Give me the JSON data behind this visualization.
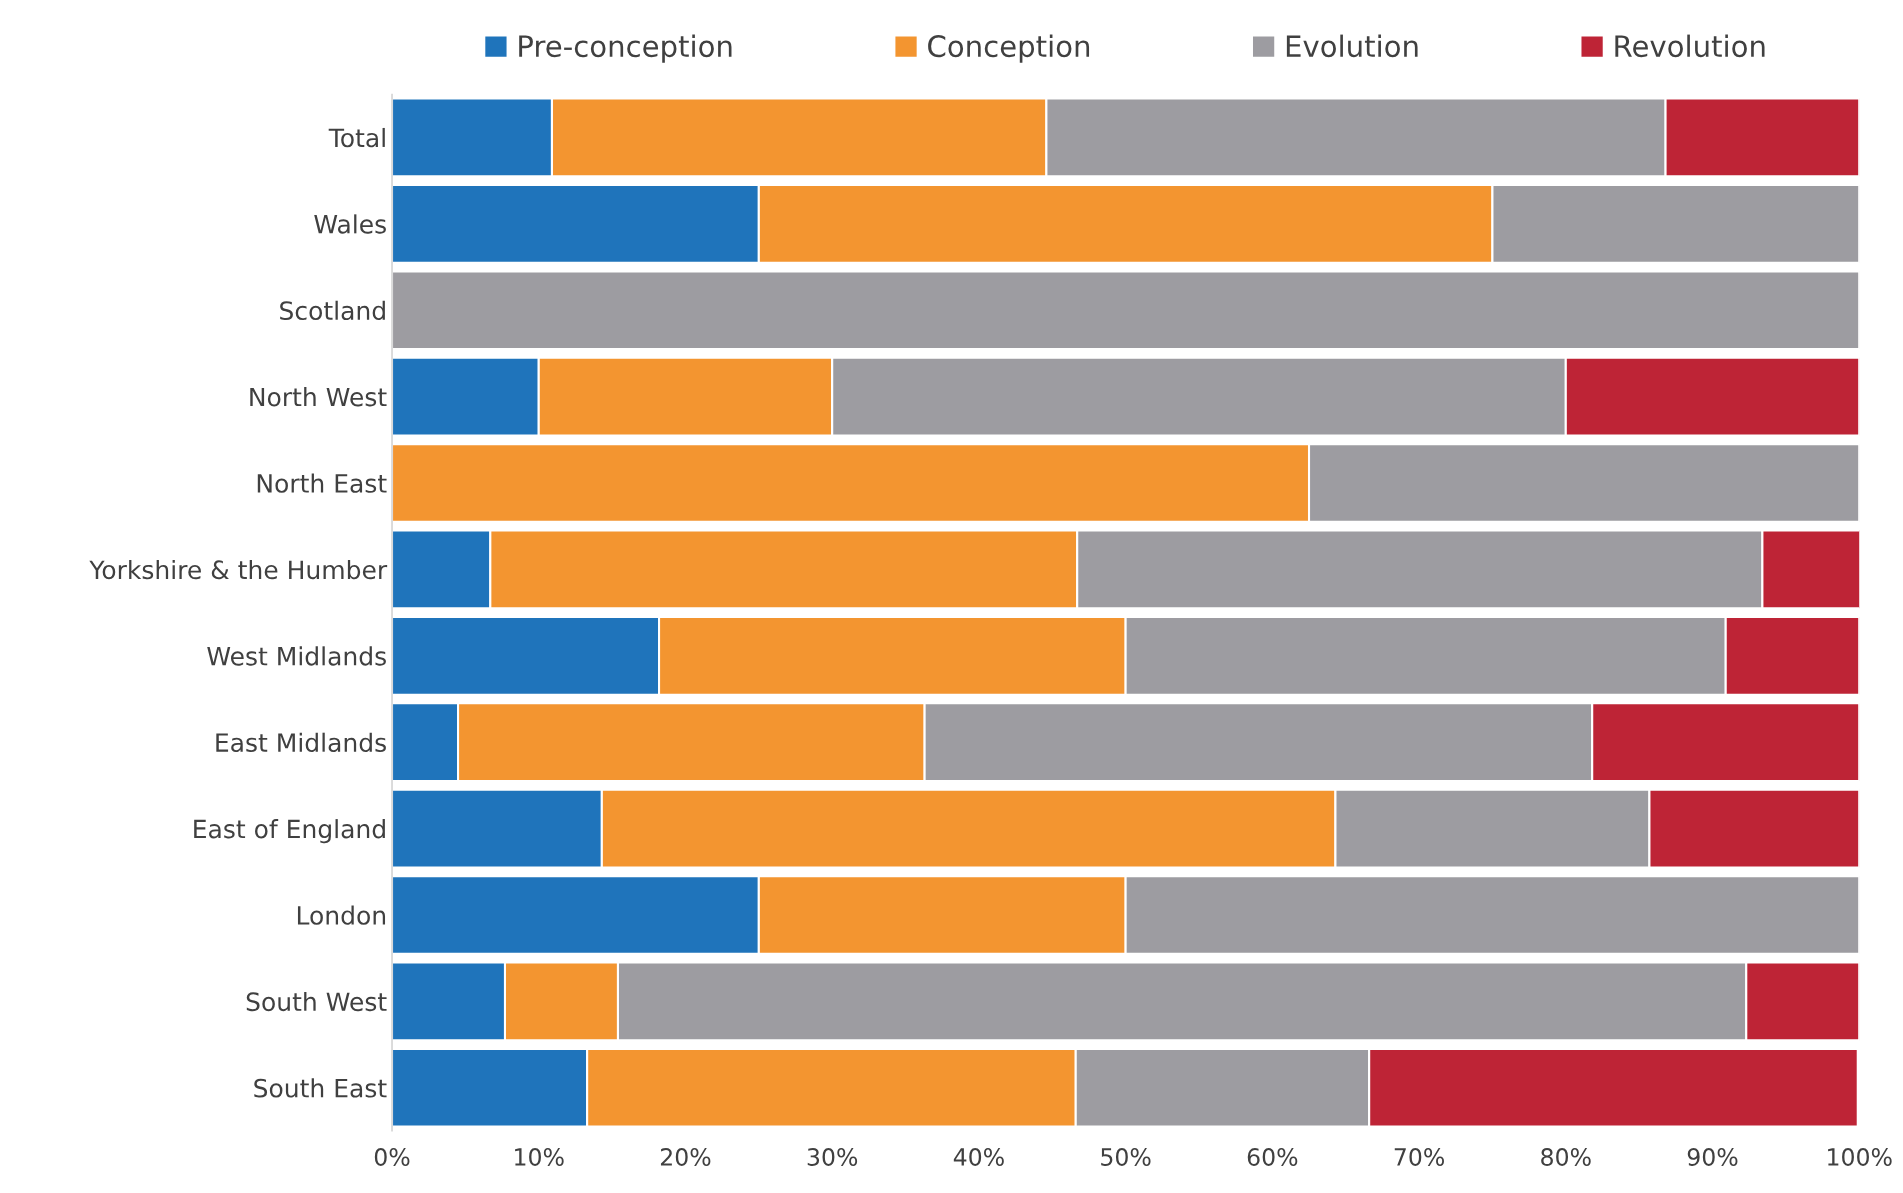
{
  "chart_data": {
    "type": "bar",
    "orientation": "horizontal",
    "stacked": true,
    "legend": "top",
    "grid": false,
    "categories": [
      "Total",
      "Wales",
      "Scotland",
      "North West",
      "North East",
      "Yorkshire & the Humber",
      "West Midlands",
      "East Midlands",
      "East of England",
      "London",
      "South West",
      "South East"
    ],
    "series": [
      {
        "name": "Pre-conception",
        "color": "#1f74bb",
        "values": [
          10.9,
          25,
          null,
          10,
          null,
          6.7,
          18.2,
          4.5,
          14.3,
          25,
          7.7,
          13.3
        ]
      },
      {
        "name": "Conception",
        "color": "#f39530",
        "values": [
          33.7,
          50,
          null,
          20,
          62.5,
          40,
          31.8,
          31.8,
          50,
          25,
          7.7,
          33.3
        ]
      },
      {
        "name": "Evolution",
        "color": "#9d9ca1",
        "values": [
          42.2,
          25,
          100,
          50,
          37.5,
          46.7,
          40.9,
          45.5,
          21.4,
          50,
          76.9,
          20
        ]
      },
      {
        "name": "Revolution",
        "color": "#be2436",
        "values": [
          13.2,
          null,
          null,
          20,
          null,
          6.7,
          9.1,
          18.2,
          14.3,
          null,
          7.7,
          33.3
        ]
      }
    ],
    "xlim": [
      0,
      100
    ],
    "xticks": [
      {
        "value": 0,
        "label": "0%"
      },
      {
        "value": 10,
        "label": "10%"
      },
      {
        "value": 20,
        "label": "20%"
      },
      {
        "value": 30,
        "label": "30%"
      },
      {
        "value": 40,
        "label": "40%"
      },
      {
        "value": 50,
        "label": "50%"
      },
      {
        "value": 60,
        "label": "60%"
      },
      {
        "value": 70,
        "label": "70%"
      },
      {
        "value": 80,
        "label": "80%"
      },
      {
        "value": 90,
        "label": "90%"
      },
      {
        "value": 100,
        "label": "100%"
      }
    ]
  }
}
